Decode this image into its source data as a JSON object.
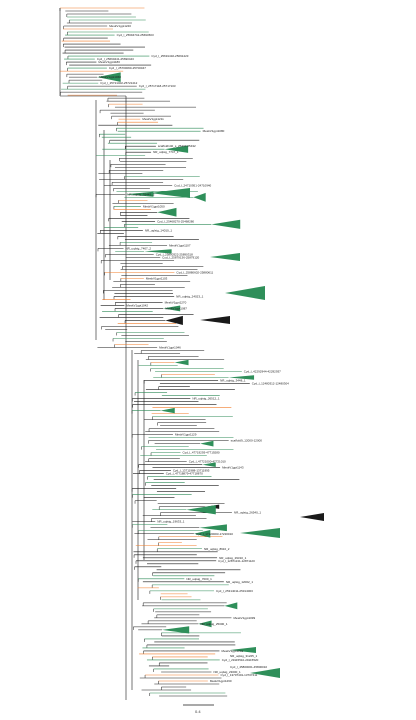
{
  "figure": {
    "title": "",
    "scale_bar_label": "0.4"
  },
  "colors": {
    "branch_black": "#1a1a1a",
    "branch_green": "#2e8b57",
    "branch_orange": "#f07d2a",
    "clade_green": "#2f8f5a",
    "clade_dark": "#1a1a1a"
  },
  "tips": [
    "MeskV1gpt1240",
    "Cyd_l_25694742-25694503",
    "Cyd_l_25691432-25691423",
    "Cyd_l_25690441-25690443",
    "MeskV1gpt1180",
    "Cyd_l_25700060-25700047",
    "MeskV1gpt1060",
    "Cyd_l_25721402-25721412",
    "Cyd_l_25717118-25717103",
    "MeskV1gpt1211",
    "MeskV1gpt1080",
    "scaffold140_s_25437-25432",
    "NR_uqlsig_7747_1",
    "Cyd_l_24710951-24710940",
    "NR_uqlsig_35445_2",
    "MeskV1gpt1050",
    "Cyd_l_25468270-25468280",
    "NR_uqlsig_14010_1",
    "MeskV1gpt1107",
    "NR_uqlsig_7407_2",
    "Cyd_l_25890322-25890318",
    "Cyd_l_25879136-25879120",
    "Cyd_l_25880602-25880611",
    "MeskV1gpt1103",
    "NR_uqlsig_24023_1",
    "MeskV1gpt1270",
    "MeskV1gpt1042",
    "MeskV1gpt1087",
    "MeskV1gpt1046",
    "Cyd_l_42292944-42292937",
    "NR_uqlsig_3448_1",
    "Cyd_l_12480312-12480304",
    "NR_uqlsig_26512_1",
    "MeskV1gpt1129",
    "scaffold9_12000-12000",
    "Cyd_l_47719293-47719280",
    "Cyd_l_47721000-47721010",
    "MeskV1gpt1143",
    "Cyd_l_13711988-13711995",
    "Cyd_l_47718879-47718870",
    "NR_uqlsig_26540_1",
    "NR_uqlsig_19633_1",
    "Cyd_l_17220003-17220010",
    "NR_uqlsig_8910_2",
    "NR_uqlsig_29310_1",
    "Cyd_l_12871131-12871120",
    "NR_uqlsig_7000_1",
    "NR_uqlsig_12002_1",
    "Cyd_l_25314011-25314003",
    "MeskV1gpt1099",
    "NR_uqlsig_25000_1",
    "MeskV1gpt1201",
    "Cyd_l_29115510-29115520",
    "NR_uqlsig_23000_1",
    "Cyd_l_13707401-13707411",
    "MeskV1gpt1260",
    "NR_uqlsig_31225_1",
    "Cyd_l_45800001-45800010"
  ]
}
